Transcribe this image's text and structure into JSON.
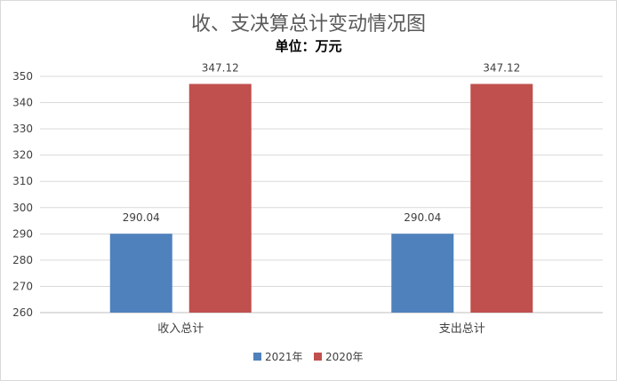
{
  "chart_data": {
    "type": "bar",
    "title": "收、支决算总计变动情况图",
    "subtitle": "单位：万元",
    "categories": [
      "收入总计",
      "支出总计"
    ],
    "series": [
      {
        "name": "2021年",
        "values": [
          290.04,
          290.04
        ],
        "color": "#4f81bd"
      },
      {
        "name": "2020年",
        "values": [
          347.12,
          347.12
        ],
        "color": "#c0504d"
      }
    ],
    "ylim": [
      260,
      350
    ],
    "yticks": [
      260,
      270,
      280,
      290,
      300,
      310,
      320,
      330,
      340,
      350
    ],
    "ytick_labels": [
      "260",
      "270",
      "280",
      "290",
      "300",
      "310",
      "320",
      "330",
      "340",
      "350"
    ],
    "data_labels": [
      [
        "290.04",
        "290.04"
      ],
      [
        "347.12",
        "347.12"
      ]
    ],
    "grid": true,
    "legend": "bottom"
  }
}
